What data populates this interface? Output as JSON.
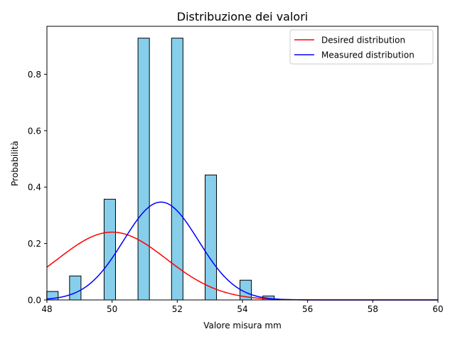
{
  "chart_data": {
    "type": "bar",
    "title": "Distribuzione dei valori",
    "xlabel": "Valore misura mm",
    "ylabel": "Probabilità",
    "xlim": [
      48,
      60
    ],
    "ylim": [
      0,
      0.97
    ],
    "xticks": [
      48,
      50,
      52,
      54,
      56,
      58,
      60
    ],
    "yticks": [
      0.0,
      0.2,
      0.4,
      0.6,
      0.8
    ],
    "xtick_labels": [
      "48",
      "50",
      "52",
      "54",
      "56",
      "58",
      "60"
    ],
    "ytick_labels": [
      "0.0",
      "0.2",
      "0.4",
      "0.6",
      "0.8"
    ],
    "grid": false,
    "legend_position": "top-right",
    "histogram": {
      "bin_width": 0.35,
      "color": "#87ceeb",
      "edge_color": "#000000",
      "bins": [
        {
          "center": 48.17,
          "value": 0.03
        },
        {
          "center": 48.87,
          "value": 0.085
        },
        {
          "center": 49.93,
          "value": 0.357
        },
        {
          "center": 50.97,
          "value": 0.928
        },
        {
          "center": 52.0,
          "value": 0.928
        },
        {
          "center": 53.03,
          "value": 0.443
        },
        {
          "center": 54.1,
          "value": 0.07
        },
        {
          "center": 54.8,
          "value": 0.014
        }
      ]
    },
    "series": [
      {
        "name": "Desired distribution",
        "type": "line",
        "color": "#ff0000",
        "distribution": "normal",
        "mean": 50.0,
        "std": 1.66
      },
      {
        "name": "Measured distribution",
        "type": "line",
        "color": "#0000ff",
        "distribution": "normal",
        "mean": 51.5,
        "std": 1.15
      }
    ]
  }
}
